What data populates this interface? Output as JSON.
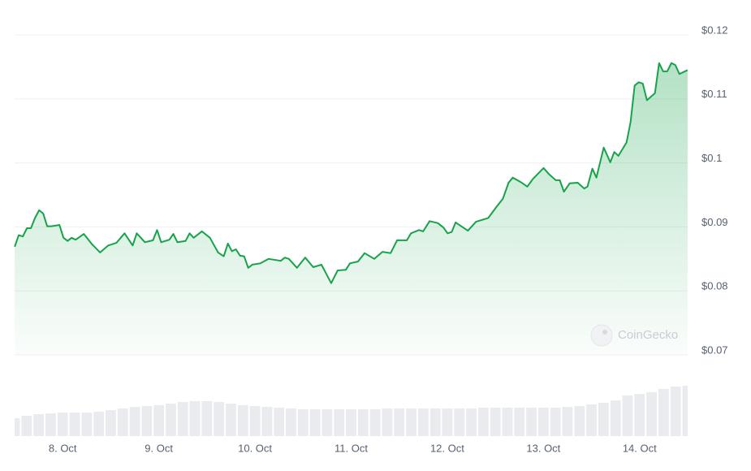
{
  "chart_data": {
    "type": "line",
    "watermark": "CoinGecko",
    "xlim": [
      7.5,
      14.5
    ],
    "xticks": [
      {
        "value": 8,
        "label": "8. Oct"
      },
      {
        "value": 9,
        "label": "9. Oct"
      },
      {
        "value": 10,
        "label": "10. Oct"
      },
      {
        "value": 11,
        "label": "11. Oct"
      },
      {
        "value": 12,
        "label": "12. Oct"
      },
      {
        "value": 13,
        "label": "13. Oct"
      },
      {
        "value": 14,
        "label": "14. Oct"
      }
    ],
    "ylim": [
      0.07,
      0.12
    ],
    "yticks": [
      {
        "value": 0.07,
        "label": "$0.07"
      },
      {
        "value": 0.08,
        "label": "$0.08"
      },
      {
        "value": 0.09,
        "label": "$0.09"
      },
      {
        "value": 0.1,
        "label": "$0.1"
      },
      {
        "value": 0.11,
        "label": "$0.11"
      },
      {
        "value": 0.12,
        "label": "$0.12"
      }
    ],
    "y2lim": [
      0,
      70
    ],
    "grid": true,
    "series": [
      {
        "color": "#16a34a",
        "x": [
          7.501,
          7.543,
          7.585,
          7.628,
          7.67,
          7.712,
          7.755,
          7.797,
          7.839,
          7.882,
          7.966,
          8.008,
          8.051,
          8.093,
          8.135,
          8.22,
          8.305,
          8.389,
          8.474,
          8.558,
          8.643,
          8.728,
          8.77,
          8.855,
          8.939,
          8.982,
          9.024,
          9.109,
          9.151,
          9.193,
          9.278,
          9.32,
          9.362,
          9.447,
          9.532,
          9.616,
          9.675,
          9.718,
          9.76,
          9.802,
          9.845,
          9.887,
          9.929,
          9.972,
          10.056,
          10.141,
          10.268,
          10.31,
          10.352,
          10.437,
          10.522,
          10.606,
          10.691,
          10.733,
          10.792,
          10.86,
          10.945,
          10.987,
          11.072,
          11.139,
          11.241,
          11.326,
          11.41,
          11.478,
          11.579,
          11.622,
          11.706,
          11.749,
          11.816,
          11.901,
          11.96,
          12.003,
          12.045,
          12.087,
          12.214,
          12.299,
          12.426,
          12.51,
          12.578,
          12.637,
          12.68,
          12.764,
          12.832,
          12.891,
          13.001,
          13.06,
          13.128,
          13.17,
          13.213,
          13.272,
          13.357,
          13.424,
          13.458,
          13.509,
          13.551,
          13.627,
          13.695,
          13.737,
          13.78,
          13.864,
          13.906,
          13.949,
          13.991,
          14.033,
          14.076,
          14.16,
          14.203,
          14.245,
          14.287,
          14.33,
          14.372,
          14.414,
          14.499
        ],
        "values": [
          0.0869,
          0.0887,
          0.0885,
          0.0898,
          0.0898,
          0.0914,
          0.0926,
          0.0921,
          0.0901,
          0.0901,
          0.0903,
          0.0883,
          0.0878,
          0.0883,
          0.088,
          0.0889,
          0.0873,
          0.086,
          0.0871,
          0.0875,
          0.089,
          0.0871,
          0.089,
          0.0876,
          0.0879,
          0.0895,
          0.0876,
          0.088,
          0.0889,
          0.0876,
          0.0878,
          0.089,
          0.0883,
          0.0893,
          0.0883,
          0.086,
          0.0854,
          0.0874,
          0.0862,
          0.0865,
          0.0855,
          0.0854,
          0.0836,
          0.0841,
          0.0843,
          0.085,
          0.0847,
          0.0852,
          0.085,
          0.0836,
          0.0852,
          0.0837,
          0.0841,
          0.0829,
          0.0812,
          0.0832,
          0.0833,
          0.0843,
          0.0846,
          0.0859,
          0.085,
          0.0861,
          0.0859,
          0.0879,
          0.0879,
          0.089,
          0.0895,
          0.0893,
          0.0909,
          0.0906,
          0.0899,
          0.089,
          0.0892,
          0.0907,
          0.0894,
          0.0908,
          0.0914,
          0.0931,
          0.0944,
          0.0969,
          0.0977,
          0.097,
          0.0963,
          0.0975,
          0.0992,
          0.0982,
          0.0973,
          0.0973,
          0.0955,
          0.0968,
          0.0969,
          0.096,
          0.0963,
          0.0991,
          0.0977,
          0.1024,
          0.1001,
          0.1017,
          0.1011,
          0.1032,
          0.1064,
          0.1121,
          0.1126,
          0.1124,
          0.1098,
          0.1109,
          0.1156,
          0.1143,
          0.1143,
          0.1156,
          0.1153,
          0.1139,
          0.1145
        ]
      },
      {
        "type": "bar",
        "axis": "y2",
        "color": "#e9ebee",
        "x": [
          7.5,
          7.625,
          7.75,
          7.875,
          8,
          8.125,
          8.25,
          8.375,
          8.5,
          8.625,
          8.75,
          8.875,
          9,
          9.125,
          9.25,
          9.375,
          9.5,
          9.625,
          9.75,
          9.875,
          10,
          10.125,
          10.25,
          10.375,
          10.5,
          10.625,
          10.75,
          10.875,
          11,
          11.125,
          11.25,
          11.375,
          11.5,
          11.625,
          11.75,
          11.875,
          12,
          12.125,
          12.25,
          12.375,
          12.5,
          12.625,
          12.75,
          12.875,
          13,
          13.125,
          13.25,
          13.375,
          13.5,
          13.625,
          13.75,
          13.875,
          14,
          14.125,
          14.25,
          14.375,
          14.5
        ],
        "values": [
          22,
          25,
          27,
          28,
          29,
          29,
          29,
          30,
          32,
          34,
          36,
          37,
          38,
          40,
          42,
          43,
          43,
          42,
          40,
          38,
          37,
          36,
          35,
          34,
          33,
          33,
          33,
          33,
          33,
          33,
          33,
          34,
          34,
          34,
          34,
          34,
          34,
          34,
          34,
          35,
          35,
          35,
          35,
          35,
          35,
          35,
          36,
          37,
          39,
          41,
          44,
          50,
          52,
          54,
          58,
          61,
          62
        ]
      }
    ]
  }
}
